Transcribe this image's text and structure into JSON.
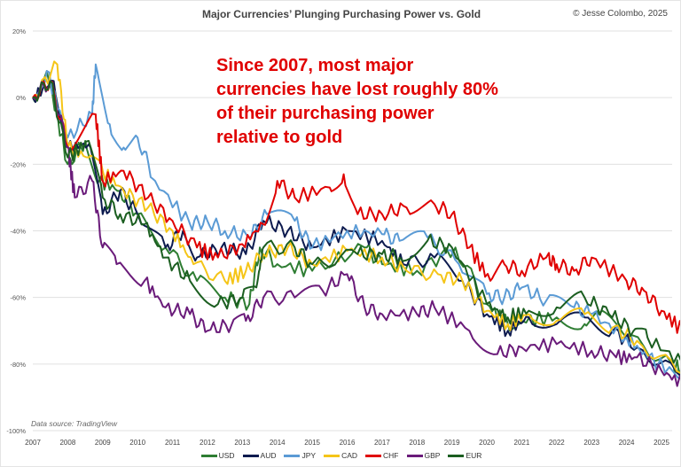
{
  "chart_data": {
    "type": "line",
    "title": "Major Currencies’ Plunging Purchasing Power vs. Gold",
    "credit": "© Jesse Colombo, 2025",
    "annotation": "Since 2007, most major currencies have lost roughly 80% of their purchasing power relative to gold",
    "source": "Data source: TradingView",
    "xlabel": "",
    "ylabel": "",
    "xlim": [
      2007,
      2025.6
    ],
    "ylim": [
      -100,
      20
    ],
    "x_ticks": [
      "2007",
      "2008",
      "2009",
      "2010",
      "2011",
      "2012",
      "2013",
      "2014",
      "2015",
      "2016",
      "2017",
      "2018",
      "2019",
      "2020",
      "2021",
      "2022",
      "2023",
      "2024",
      "2025"
    ],
    "y_ticks": [
      "20%",
      "0%",
      "-20%",
      "-40%",
      "-60%",
      "-80%",
      "-100%"
    ],
    "y_tick_values": [
      20,
      0,
      -20,
      -40,
      -60,
      -80,
      -100
    ],
    "grid": true,
    "legend_position": "bottom",
    "series": [
      {
        "name": "USD",
        "color": "#2e7d32",
        "x": [
          2007,
          2007.4,
          2008,
          2008.5,
          2008.9,
          2009.5,
          2010,
          2010.8,
          2011.7,
          2012.5,
          2013.2,
          2013.5,
          2014,
          2015,
          2016.5,
          2017,
          2018,
          2019.1,
          2020,
          2020.6,
          2021,
          2022,
          2022.8,
          2023.2,
          2024,
          2025.3,
          2025.6
        ],
        "y": [
          0,
          8,
          -20,
          -13,
          -25,
          -28,
          -35,
          -45,
          -55,
          -60,
          -62,
          -45,
          -50,
          -52,
          -45,
          -50,
          -52,
          -45,
          -62,
          -68,
          -67,
          -66,
          -68,
          -65,
          -72,
          -80,
          -82
        ]
      },
      {
        "name": "AUD",
        "color": "#0d1b4f",
        "x": [
          2007,
          2007.6,
          2008,
          2008.6,
          2009,
          2009.5,
          2010,
          2010.8,
          2011.3,
          2011.7,
          2012.4,
          2013.1,
          2013.6,
          2014.3,
          2015,
          2016,
          2017,
          2017.6,
          2018.5,
          2019.3,
          2020,
          2020.6,
          2021.2,
          2022,
          2022.8,
          2023.6,
          2024.3,
          2025.6
        ],
        "y": [
          0,
          5,
          -15,
          -14,
          -35,
          -28,
          -35,
          -45,
          -40,
          -48,
          -45,
          -47,
          -37,
          -40,
          -45,
          -40,
          -43,
          -50,
          -48,
          -55,
          -65,
          -70,
          -66,
          -68,
          -66,
          -70,
          -75,
          -84
        ]
      },
      {
        "name": "JPY",
        "color": "#5b9bd5",
        "x": [
          2007,
          2007.4,
          2008,
          2008.7,
          2008.8,
          2009.2,
          2009.6,
          2010,
          2010.5,
          2011.5,
          2012,
          2012.5,
          2013.2,
          2013.7,
          2014.5,
          2015,
          2016,
          2017,
          2017.5,
          2018.3,
          2019.2,
          2020,
          2020.5,
          2021,
          2021.7,
          2022.5,
          2023,
          2024,
          2024.6,
          2025.6
        ],
        "y": [
          0,
          8,
          -12,
          -5,
          10,
          -8,
          -15,
          -12,
          -25,
          -38,
          -37,
          -40,
          -42,
          -35,
          -37,
          -45,
          -40,
          -41,
          -43,
          -42,
          -50,
          -59,
          -60,
          -57,
          -61,
          -63,
          -65,
          -72,
          -78,
          -84
        ]
      },
      {
        "name": "CAD",
        "color": "#f5c518",
        "x": [
          2007,
          2007.7,
          2008,
          2008.6,
          2009,
          2009.6,
          2010.3,
          2011,
          2011.6,
          2012.5,
          2013.1,
          2013.6,
          2014.3,
          2015,
          2016,
          2017,
          2017.7,
          2018.6,
          2019.3,
          2020,
          2020.6,
          2021.2,
          2022,
          2022.8,
          2023.6,
          2024.3,
          2025.6
        ],
        "y": [
          0,
          10,
          -15,
          -18,
          -22,
          -28,
          -33,
          -40,
          -50,
          -55,
          -52,
          -47,
          -45,
          -50,
          -46,
          -48,
          -52,
          -53,
          -55,
          -64,
          -68,
          -65,
          -67,
          -65,
          -69,
          -73,
          -83
        ]
      },
      {
        "name": "CHF",
        "color": "#e00000",
        "x": [
          2007,
          2007.5,
          2008,
          2008.8,
          2009,
          2009.6,
          2010.3,
          2011,
          2011.7,
          2012.3,
          2013,
          2013.6,
          2014,
          2014.5,
          2015.5,
          2015.9,
          2016.3,
          2017,
          2017.7,
          2018.5,
          2019,
          2019.5,
          2020.1,
          2020.5,
          2021,
          2021.7,
          2022,
          2022.5,
          2023,
          2024,
          2024.5,
          2025,
          2025.6
        ],
        "y": [
          0,
          5,
          -15,
          -5,
          -25,
          -22,
          -30,
          -37,
          -45,
          -48,
          -44,
          -38,
          -25,
          -30,
          -27,
          -23,
          -35,
          -35,
          -33,
          -32,
          -35,
          -45,
          -55,
          -50,
          -52,
          -48,
          -50,
          -52,
          -48,
          -55,
          -58,
          -64,
          -70
        ]
      },
      {
        "name": "GBP",
        "color": "#6a1b7a",
        "x": [
          2007,
          2007.5,
          2008,
          2008.2,
          2008.7,
          2009,
          2009.4,
          2010.2,
          2010.8,
          2011.5,
          2012,
          2012.7,
          2013.1,
          2013.6,
          2014.5,
          2015.3,
          2016,
          2016.5,
          2017,
          2018,
          2018.5,
          2019.5,
          2020.3,
          2021,
          2022,
          2023,
          2023.7,
          2024.3,
          2025,
          2025.6
        ],
        "y": [
          0,
          5,
          -15,
          -30,
          -25,
          -45,
          -50,
          -55,
          -63,
          -65,
          -70,
          -68,
          -67,
          -60,
          -60,
          -58,
          -53,
          -63,
          -65,
          -65,
          -63,
          -70,
          -77,
          -75,
          -74,
          -76,
          -78,
          -78,
          -82,
          -86
        ]
      },
      {
        "name": "EUR",
        "color": "#1b5e20",
        "x": [
          2007,
          2007.5,
          2008,
          2008.6,
          2009,
          2009.5,
          2010.2,
          2010.8,
          2011.5,
          2012.3,
          2013,
          2013.4,
          2013.6,
          2014.5,
          2015,
          2016.3,
          2017,
          2017.5,
          2018.3,
          2019,
          2020,
          2020.6,
          2021.2,
          2022,
          2022.8,
          2023.5,
          2024.2,
          2024.6,
          2025.6
        ],
        "y": [
          0,
          5,
          -18,
          -13,
          -30,
          -35,
          -38,
          -48,
          -55,
          -62,
          -60,
          -57,
          -45,
          -45,
          -50,
          -47,
          -47,
          -48,
          -43,
          -45,
          -62,
          -66,
          -64,
          -63,
          -60,
          -65,
          -70,
          -72,
          -80
        ]
      }
    ]
  }
}
